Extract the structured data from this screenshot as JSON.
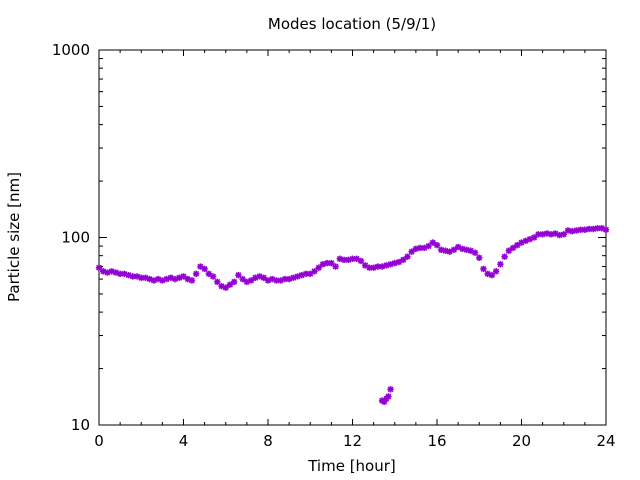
{
  "chart_data": {
    "type": "scatter",
    "title": "Modes location (5/9/1)",
    "xlabel": "Time [hour]",
    "ylabel": "Particle size [nm]",
    "xlim": [
      0,
      24
    ],
    "ylim": [
      10,
      1000
    ],
    "yscale": "log",
    "grid": false,
    "legend": "none",
    "x_ticks": [
      0,
      4,
      8,
      12,
      16,
      20,
      24
    ],
    "y_ticks": [
      10,
      100,
      1000
    ],
    "x_tick_labels": [
      "0",
      "4",
      "8",
      "12",
      "16",
      "20",
      "24"
    ],
    "y_tick_labels": [
      "10",
      "100",
      "1000"
    ],
    "series": [
      {
        "color": "#9400d3",
        "marker": "star",
        "points": [
          [
            0.0,
            69
          ],
          [
            0.2,
            66
          ],
          [
            0.4,
            65
          ],
          [
            0.6,
            66
          ],
          [
            0.8,
            65
          ],
          [
            1.0,
            64
          ],
          [
            1.2,
            64
          ],
          [
            1.4,
            63
          ],
          [
            1.6,
            62
          ],
          [
            1.8,
            62
          ],
          [
            2.0,
            61
          ],
          [
            2.2,
            61
          ],
          [
            2.4,
            60
          ],
          [
            2.6,
            59
          ],
          [
            2.8,
            60
          ],
          [
            3.0,
            59
          ],
          [
            3.2,
            60
          ],
          [
            3.4,
            61
          ],
          [
            3.6,
            60
          ],
          [
            3.8,
            61
          ],
          [
            4.0,
            62
          ],
          [
            4.2,
            60
          ],
          [
            4.4,
            59
          ],
          [
            4.6,
            64
          ],
          [
            4.8,
            70
          ],
          [
            5.0,
            68
          ],
          [
            5.2,
            64
          ],
          [
            5.4,
            62
          ],
          [
            5.6,
            58
          ],
          [
            5.8,
            55
          ],
          [
            6.0,
            54
          ],
          [
            6.2,
            56
          ],
          [
            6.4,
            58
          ],
          [
            6.6,
            63
          ],
          [
            6.8,
            60
          ],
          [
            7.0,
            58
          ],
          [
            7.2,
            59
          ],
          [
            7.4,
            61
          ],
          [
            7.6,
            62
          ],
          [
            7.8,
            61
          ],
          [
            8.0,
            59
          ],
          [
            8.2,
            60
          ],
          [
            8.4,
            59
          ],
          [
            8.6,
            59
          ],
          [
            8.8,
            60
          ],
          [
            9.0,
            60
          ],
          [
            9.2,
            61
          ],
          [
            9.4,
            62
          ],
          [
            9.6,
            63
          ],
          [
            9.8,
            64
          ],
          [
            10.0,
            64
          ],
          [
            10.2,
            66
          ],
          [
            10.4,
            69
          ],
          [
            10.6,
            72
          ],
          [
            10.8,
            73
          ],
          [
            11.0,
            73
          ],
          [
            11.2,
            70
          ],
          [
            11.4,
            77
          ],
          [
            11.6,
            76
          ],
          [
            11.8,
            76
          ],
          [
            12.0,
            77
          ],
          [
            12.2,
            77
          ],
          [
            12.4,
            75
          ],
          [
            12.6,
            71
          ],
          [
            12.8,
            69
          ],
          [
            13.0,
            69
          ],
          [
            13.2,
            70
          ],
          [
            13.4,
            70
          ],
          [
            13.6,
            71
          ],
          [
            13.8,
            72
          ],
          [
            14.0,
            73
          ],
          [
            14.2,
            74
          ],
          [
            14.4,
            76
          ],
          [
            14.6,
            79
          ],
          [
            14.8,
            84
          ],
          [
            15.0,
            87
          ],
          [
            15.2,
            88
          ],
          [
            15.4,
            88
          ],
          [
            15.6,
            90
          ],
          [
            15.8,
            94
          ],
          [
            16.0,
            91
          ],
          [
            16.2,
            86
          ],
          [
            16.4,
            85
          ],
          [
            16.6,
            84
          ],
          [
            16.8,
            86
          ],
          [
            17.0,
            89
          ],
          [
            17.2,
            87
          ],
          [
            17.4,
            86
          ],
          [
            17.6,
            85
          ],
          [
            17.8,
            83
          ],
          [
            18.0,
            78
          ],
          [
            18.2,
            68
          ],
          [
            18.4,
            64
          ],
          [
            18.6,
            63
          ],
          [
            18.8,
            66
          ],
          [
            19.0,
            72
          ],
          [
            19.2,
            79
          ],
          [
            19.4,
            85
          ],
          [
            19.6,
            88
          ],
          [
            19.8,
            91
          ],
          [
            20.0,
            94
          ],
          [
            20.2,
            96
          ],
          [
            20.4,
            98
          ],
          [
            20.6,
            100
          ],
          [
            20.8,
            104
          ],
          [
            21.0,
            104
          ],
          [
            21.2,
            105
          ],
          [
            21.4,
            104
          ],
          [
            21.6,
            105
          ],
          [
            21.8,
            103
          ],
          [
            22.0,
            104
          ],
          [
            22.2,
            109
          ],
          [
            22.4,
            108
          ],
          [
            22.6,
            109
          ],
          [
            22.8,
            110
          ],
          [
            23.0,
            110
          ],
          [
            23.2,
            111
          ],
          [
            23.4,
            111
          ],
          [
            23.6,
            112
          ],
          [
            23.8,
            112
          ],
          [
            24.0,
            110
          ],
          [
            13.4,
            13.5
          ],
          [
            13.5,
            13.3
          ],
          [
            13.6,
            13.8
          ],
          [
            13.7,
            14.2
          ],
          [
            13.8,
            15.5
          ]
        ]
      }
    ]
  }
}
